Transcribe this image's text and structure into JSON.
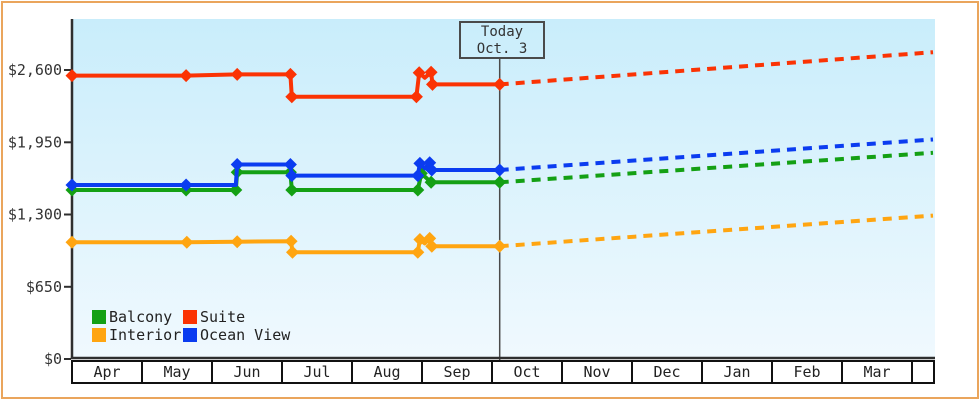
{
  "window": {
    "frame_border_color": "#eaa55c",
    "background_color": "#ffffff"
  },
  "today_marker": {
    "line1": "Today",
    "line2": "Oct. 3",
    "month_position": 6.11
  },
  "legend": [
    {
      "label": "Balcony",
      "color": "#14a014"
    },
    {
      "label": "Suite",
      "color": "#fb3304"
    },
    {
      "label": "Interior",
      "color": "#ffa511"
    },
    {
      "label": "Ocean View",
      "color": "#0b3cf0"
    }
  ],
  "chart_data": {
    "type": "line",
    "description": "Cruise cabin price history by category with dashed future projection after today (Oct. 3)",
    "plot": {
      "bg_top": "#c9edfb",
      "bg_bottom": "#f0f9fe",
      "axis_color": "#2f2f2f"
    },
    "x_axis": {
      "months": [
        "Apr",
        "May",
        "Jun",
        "Jul",
        "Aug",
        "Sep",
        "Oct",
        "Nov",
        "Dec",
        "Jan",
        "Feb",
        "Mar"
      ],
      "grid": false
    },
    "y_axis": {
      "range": [
        0,
        2600
      ],
      "ticks": [
        {
          "label": "$2,600",
          "value": 2600
        },
        {
          "label": "$1,950",
          "value": 1950
        },
        {
          "label": "$1,300",
          "value": 1300
        },
        {
          "label": "$650",
          "value": 650
        },
        {
          "label": "$0",
          "value": 0
        }
      ]
    },
    "series": [
      {
        "name": "Interior",
        "color": "#ffa511",
        "points": [
          [
            0,
            1050,
            1
          ],
          [
            1.64,
            1050,
            1
          ],
          [
            2.36,
            1055,
            1
          ],
          [
            3.13,
            1060,
            1
          ],
          [
            3.15,
            960,
            1
          ],
          [
            4.94,
            960,
            1
          ],
          [
            4.97,
            1075,
            1
          ],
          [
            5.04,
            1040,
            0
          ],
          [
            5.11,
            1085,
            1
          ],
          [
            5.14,
            1015,
            1
          ],
          [
            6.11,
            1015,
            1
          ]
        ],
        "projection": [
          [
            6.11,
            1015
          ],
          [
            12.3,
            1290
          ]
        ]
      },
      {
        "name": "Balcony",
        "color": "#14a014",
        "points": [
          [
            0,
            1520,
            1
          ],
          [
            1.63,
            1520,
            1
          ],
          [
            2.34,
            1520,
            1
          ],
          [
            2.36,
            1680,
            1
          ],
          [
            3.12,
            1680,
            1
          ],
          [
            3.14,
            1520,
            1
          ],
          [
            4.94,
            1520,
            1
          ],
          [
            4.99,
            1670,
            1
          ],
          [
            5.13,
            1590,
            1
          ],
          [
            6.11,
            1590,
            1
          ]
        ],
        "projection": [
          [
            6.11,
            1590
          ],
          [
            12.3,
            1855
          ]
        ]
      },
      {
        "name": "Ocean View",
        "color": "#0b3cf0",
        "points": [
          [
            0,
            1565,
            1
          ],
          [
            1.63,
            1565,
            1
          ],
          [
            2.34,
            1565,
            0
          ],
          [
            2.36,
            1750,
            1
          ],
          [
            3.12,
            1750,
            1
          ],
          [
            3.14,
            1650,
            1
          ],
          [
            4.94,
            1650,
            1
          ],
          [
            4.97,
            1760,
            1
          ],
          [
            5.04,
            1715,
            0
          ],
          [
            5.11,
            1765,
            1
          ],
          [
            5.14,
            1700,
            1
          ],
          [
            6.11,
            1700,
            1
          ]
        ],
        "projection": [
          [
            6.11,
            1700
          ],
          [
            12.3,
            1975
          ]
        ]
      },
      {
        "name": "Suite",
        "color": "#fb3304",
        "points": [
          [
            0,
            2550,
            1
          ],
          [
            1.63,
            2550,
            1
          ],
          [
            2.36,
            2560,
            1
          ],
          [
            3.12,
            2560,
            1
          ],
          [
            3.14,
            2360,
            1
          ],
          [
            4.92,
            2360,
            1
          ],
          [
            4.96,
            2575,
            1
          ],
          [
            5.04,
            2530,
            0
          ],
          [
            5.13,
            2580,
            1
          ],
          [
            5.15,
            2470,
            1
          ],
          [
            6.11,
            2470,
            1
          ]
        ],
        "projection": [
          [
            6.11,
            2470
          ],
          [
            12.3,
            2760
          ]
        ]
      }
    ]
  }
}
